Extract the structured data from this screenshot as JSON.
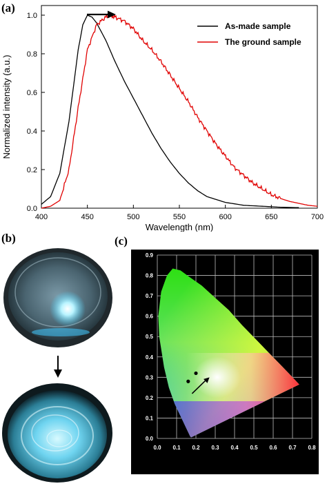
{
  "figure": {
    "panel_a_label": "(a)",
    "panel_b_label": "(b)",
    "panel_c_label": "(c)"
  },
  "chart_data": [
    {
      "type": "line",
      "panel": "(a)",
      "xlabel": "Wavelength (nm)",
      "ylabel": "Normalized intensity (a.u.)",
      "xlim": [
        400,
        700
      ],
      "ylim": [
        0,
        1.05
      ],
      "xticks": [
        "400",
        "450",
        "500",
        "550",
        "600",
        "650",
        "700"
      ],
      "yticks": [
        "0.0",
        "0.2",
        "0.4",
        "0.6",
        "0.8",
        "1.0"
      ],
      "legend_position": "top-right",
      "annotation": "arrow indicating red shift",
      "series": [
        {
          "name": "As-made sample",
          "color": "#000000",
          "x": [
            400,
            410,
            420,
            430,
            440,
            445,
            450,
            455,
            460,
            470,
            480,
            490,
            500,
            510,
            520,
            530,
            540,
            550,
            560,
            570,
            580,
            590,
            600,
            620,
            640,
            660,
            680
          ],
          "y": [
            0.02,
            0.06,
            0.18,
            0.45,
            0.82,
            0.95,
            1.0,
            0.99,
            0.96,
            0.87,
            0.76,
            0.66,
            0.57,
            0.48,
            0.39,
            0.31,
            0.24,
            0.18,
            0.13,
            0.09,
            0.06,
            0.045,
            0.03,
            0.015,
            0.01,
            0.005,
            0.003
          ]
        },
        {
          "name": "The ground sample",
          "color": "#e00000",
          "x": [
            400,
            410,
            420,
            430,
            440,
            450,
            460,
            470,
            475,
            480,
            490,
            500,
            510,
            520,
            530,
            540,
            550,
            560,
            570,
            580,
            590,
            600,
            610,
            620,
            630,
            640,
            650,
            660,
            670,
            680,
            690,
            700
          ],
          "y": [
            0.0,
            0.01,
            0.04,
            0.2,
            0.52,
            0.82,
            0.95,
            0.99,
            1.0,
            0.99,
            0.97,
            0.93,
            0.87,
            0.82,
            0.76,
            0.69,
            0.62,
            0.55,
            0.47,
            0.4,
            0.33,
            0.27,
            0.21,
            0.17,
            0.13,
            0.1,
            0.07,
            0.05,
            0.035,
            0.025,
            0.015,
            0.01
          ]
        }
      ]
    },
    {
      "type": "scatter",
      "panel": "(c)",
      "title": "",
      "xlim": [
        0,
        0.8
      ],
      "ylim": [
        0,
        0.9
      ],
      "xticks": [
        "0.0",
        "0.1",
        "0.2",
        "0.3",
        "0.4",
        "0.5",
        "0.6",
        "0.7",
        "0.8"
      ],
      "yticks": [
        "0.0",
        "0.1",
        "0.2",
        "0.3",
        "0.4",
        "0.5",
        "0.6",
        "0.7",
        "0.8",
        "0.9"
      ],
      "grid": true,
      "annotation": "arrow from as-made point toward ground point",
      "points": [
        {
          "x": 0.16,
          "y": 0.28
        },
        {
          "x": 0.2,
          "y": 0.32
        }
      ]
    }
  ]
}
